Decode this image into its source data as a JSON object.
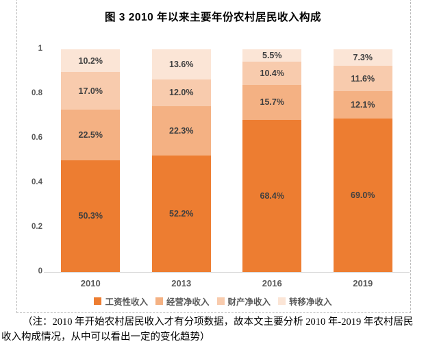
{
  "title": "图 3  2010 年以来主要年份农村居民收入构成",
  "chart_data": {
    "type": "bar",
    "stacked": true,
    "title": "图 3  2010 年以来主要年份农村居民收入构成",
    "categories": [
      "2010",
      "2013",
      "2016",
      "2019"
    ],
    "series": [
      {
        "name": "工资性收入",
        "color": "#ED7D31",
        "values": [
          50.3,
          52.2,
          68.4,
          69.0
        ],
        "labels": [
          "50.3%",
          "52.2%",
          "68.4%",
          "69.0%"
        ]
      },
      {
        "name": "经营净收入",
        "color": "#F4B183",
        "values": [
          22.5,
          22.3,
          15.7,
          12.1
        ],
        "labels": [
          "22.5%",
          "22.3%",
          "15.7%",
          "12.1%"
        ]
      },
      {
        "name": "财产净收入",
        "color": "#F8CBAD",
        "values": [
          17.0,
          12.0,
          10.4,
          11.6
        ],
        "labels": [
          "17.0%",
          "12.0%",
          "10.4%",
          "11.6%"
        ]
      },
      {
        "name": "转移净收入",
        "color": "#FBE5D6",
        "values": [
          10.2,
          13.6,
          5.5,
          7.3
        ],
        "labels": [
          "10.2%",
          "13.6%",
          "5.5%",
          "7.3%"
        ]
      }
    ],
    "y_ticks": [
      {
        "label": "1",
        "value": 1
      },
      {
        "label": "0.8",
        "value": 0.8
      },
      {
        "label": "0.6",
        "value": 0.6
      },
      {
        "label": "0.4",
        "value": 0.4
      },
      {
        "label": "0.2",
        "value": 0.2
      },
      {
        "label": "0",
        "value": 0
      }
    ],
    "ylim": [
      0,
      1
    ],
    "grid": false,
    "legend_position": "bottom",
    "data_label_color": "#404040",
    "axis_text_color": "#595959",
    "axis_line_color": "#d9d9d9"
  },
  "note": {
    "line1": "（注：2010 年开始农村居民收入才有分项数据，故本文主要分析 2010 年-2019 年农村居民",
    "line2": "收入构成情况，从中可以看出一定的变化趋势）"
  }
}
